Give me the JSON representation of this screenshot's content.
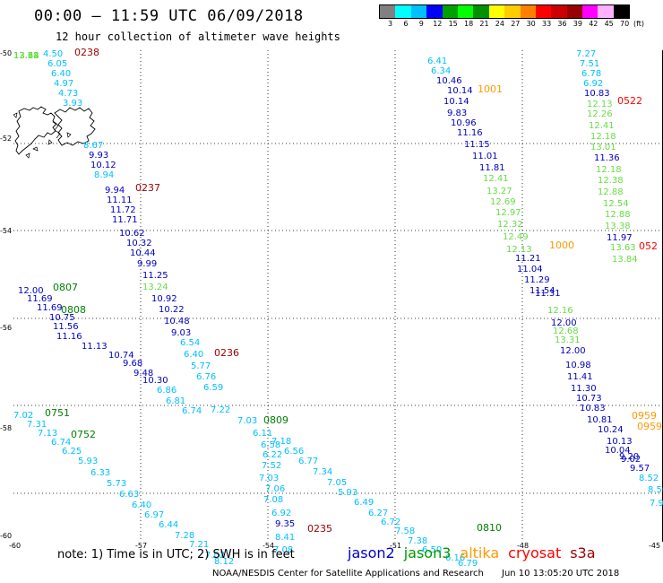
{
  "title": "00:00 – 11:59 UTC 06/09/2018",
  "subtitle": "12 hour collection of altimeter wave heights",
  "legend": {
    "unit": "(ft)",
    "colors": [
      "#808080",
      "#00ffff",
      "#00c0ff",
      "#0000ff",
      "#00a000",
      "#00ff00",
      "#009000",
      "#ffff00",
      "#ffcc00",
      "#ff8000",
      "#ff0000",
      "#cc0000",
      "#990000",
      "#ff00ff",
      "#ffb0ff",
      "#000000"
    ],
    "labels": [
      "3",
      "6",
      "9",
      "12",
      "15",
      "18",
      "21",
      "24",
      "27",
      "30",
      "33",
      "36",
      "39",
      "42",
      "45",
      "70"
    ]
  },
  "axes": {
    "lat_labels": [
      "-50",
      "-52",
      "-54",
      "-56",
      "-58",
      "-60"
    ],
    "lon_labels": [
      "-60",
      "-57",
      "-54",
      "-51",
      "-48",
      "-45"
    ]
  },
  "time_labels": [
    {
      "text": "0238",
      "color": "#990000"
    },
    {
      "text": "0237",
      "color": "#990000"
    },
    {
      "text": "0236",
      "color": "#990000"
    },
    {
      "text": "0235",
      "color": "#990000"
    },
    {
      "text": "1001",
      "color": "#ff9900"
    },
    {
      "text": "1000",
      "color": "#ff9900"
    },
    {
      "text": "0959",
      "color": "#ff9900"
    },
    {
      "text": "0959",
      "color": "#ff9900"
    },
    {
      "text": "0522",
      "color": "#ff0000"
    },
    {
      "text": "052",
      "color": "#ff0000"
    },
    {
      "text": "0807",
      "color": "#008000"
    },
    {
      "text": "0808",
      "color": "#008000"
    },
    {
      "text": "0809",
      "color": "#008000"
    },
    {
      "text": "0810",
      "color": "#008000"
    },
    {
      "text": "0751",
      "color": "#008000"
    },
    {
      "text": "0752",
      "color": "#008000"
    }
  ],
  "observations": [
    {
      "v": "4.50",
      "c": "#00c0ff"
    },
    {
      "v": "6.05",
      "c": "#00c0ff"
    },
    {
      "v": "6.40",
      "c": "#00c0ff"
    },
    {
      "v": "4.97",
      "c": "#00c0ff"
    },
    {
      "v": "4.73",
      "c": "#00c0ff"
    },
    {
      "v": "3.93",
      "c": "#00c0ff"
    },
    {
      "v": "8.67",
      "c": "#00c0ff"
    },
    {
      "v": "9.93",
      "c": "#0000c0"
    },
    {
      "v": "10.12",
      "c": "#0000c0"
    },
    {
      "v": "8.94",
      "c": "#00c0ff"
    },
    {
      "v": "9.94",
      "c": "#0000c0"
    },
    {
      "v": "11.11",
      "c": "#0000c0"
    },
    {
      "v": "11.72",
      "c": "#0000c0"
    },
    {
      "v": "11.71",
      "c": "#0000c0"
    },
    {
      "v": "10.62",
      "c": "#0000c0"
    },
    {
      "v": "10.32",
      "c": "#0000c0"
    },
    {
      "v": "10.44",
      "c": "#0000c0"
    },
    {
      "v": "9.99",
      "c": "#0000c0"
    },
    {
      "v": "11.25",
      "c": "#0000c0"
    },
    {
      "v": "13.24",
      "c": "#66dd44"
    },
    {
      "v": "10.92",
      "c": "#0000c0"
    },
    {
      "v": "10.22",
      "c": "#0000c0"
    },
    {
      "v": "10.48",
      "c": "#0000c0"
    },
    {
      "v": "9.03",
      "c": "#0000c0"
    },
    {
      "v": "6.54",
      "c": "#00c0ff"
    },
    {
      "v": "6.40",
      "c": "#00c0ff"
    },
    {
      "v": "5.77",
      "c": "#00c0ff"
    },
    {
      "v": "6.76",
      "c": "#00c0ff"
    },
    {
      "v": "6.59",
      "c": "#00c0ff"
    },
    {
      "v": "7.22",
      "c": "#00c0ff"
    },
    {
      "v": "7.03",
      "c": "#00c0ff"
    },
    {
      "v": "7.18",
      "c": "#00c0ff"
    },
    {
      "v": "6.56",
      "c": "#00c0ff"
    },
    {
      "v": "6.77",
      "c": "#00c0ff"
    },
    {
      "v": "7.34",
      "c": "#00c0ff"
    },
    {
      "v": "7.05",
      "c": "#00c0ff"
    },
    {
      "v": "5.93",
      "c": "#00c0ff"
    },
    {
      "v": "6.49",
      "c": "#00c0ff"
    },
    {
      "v": "6.27",
      "c": "#00c0ff"
    },
    {
      "v": "6.72",
      "c": "#00c0ff"
    },
    {
      "v": "7.58",
      "c": "#00c0ff"
    },
    {
      "v": "7.38",
      "c": "#00c0ff"
    },
    {
      "v": "6.50",
      "c": "#00c0ff"
    },
    {
      "v": "6.16",
      "c": "#00c0ff"
    },
    {
      "v": "6.79",
      "c": "#00c0ff"
    },
    {
      "v": "12.00",
      "c": "#0000c0"
    },
    {
      "v": "11.69",
      "c": "#0000c0"
    },
    {
      "v": "11.69",
      "c": "#0000c0"
    },
    {
      "v": "10.75",
      "c": "#0000c0"
    },
    {
      "v": "11.56",
      "c": "#0000c0"
    },
    {
      "v": "11.16",
      "c": "#0000c0"
    },
    {
      "v": "11.13",
      "c": "#0000c0"
    },
    {
      "v": "10.74",
      "c": "#0000c0"
    },
    {
      "v": "9.68",
      "c": "#0000c0"
    },
    {
      "v": "9.48",
      "c": "#0000c0"
    },
    {
      "v": "10.30",
      "c": "#0000c0"
    },
    {
      "v": "6.86",
      "c": "#00c0ff"
    },
    {
      "v": "6.81",
      "c": "#00c0ff"
    },
    {
      "v": "6.74",
      "c": "#00c0ff"
    },
    {
      "v": "7.02",
      "c": "#00c0ff"
    },
    {
      "v": "7.31",
      "c": "#00c0ff"
    },
    {
      "v": "7.13",
      "c": "#00c0ff"
    },
    {
      "v": "6.74",
      "c": "#00c0ff"
    },
    {
      "v": "6.25",
      "c": "#00c0ff"
    },
    {
      "v": "5.93",
      "c": "#00c0ff"
    },
    {
      "v": "6.33",
      "c": "#00c0ff"
    },
    {
      "v": "5.73",
      "c": "#00c0ff"
    },
    {
      "v": "6.63",
      "c": "#00c0ff"
    },
    {
      "v": "6.40",
      "c": "#00c0ff"
    },
    {
      "v": "6.97",
      "c": "#00c0ff"
    },
    {
      "v": "6.44",
      "c": "#00c0ff"
    },
    {
      "v": "7.28",
      "c": "#00c0ff"
    },
    {
      "v": "7.21",
      "c": "#00c0ff"
    },
    {
      "v": "7.02",
      "c": "#00c0ff"
    },
    {
      "v": "8.12",
      "c": "#00c0ff"
    },
    {
      "v": "9.35",
      "c": "#0000c0"
    },
    {
      "v": "8.41",
      "c": "#00c0ff"
    },
    {
      "v": "7.08",
      "c": "#00c0ff"
    },
    {
      "v": "6.92",
      "c": "#00c0ff"
    },
    {
      "v": "7.08",
      "c": "#00c0ff"
    },
    {
      "v": "7.06",
      "c": "#00c0ff"
    },
    {
      "v": "7.03",
      "c": "#00c0ff"
    },
    {
      "v": "7.52",
      "c": "#00c0ff"
    },
    {
      "v": "6.22",
      "c": "#00c0ff"
    },
    {
      "v": "6.58",
      "c": "#00c0ff"
    },
    {
      "v": "6.11",
      "c": "#00c0ff"
    },
    {
      "v": "6.41",
      "c": "#00c0ff"
    },
    {
      "v": "6.34",
      "c": "#00c0ff"
    },
    {
      "v": "10.46",
      "c": "#0000c0"
    },
    {
      "v": "10.14",
      "c": "#0000c0"
    },
    {
      "v": "10.14",
      "c": "#0000c0"
    },
    {
      "v": "9.83",
      "c": "#0000c0"
    },
    {
      "v": "10.96",
      "c": "#0000c0"
    },
    {
      "v": "11.16",
      "c": "#0000c0"
    },
    {
      "v": "11.15",
      "c": "#0000c0"
    },
    {
      "v": "11.01",
      "c": "#0000c0"
    },
    {
      "v": "11.81",
      "c": "#0000c0"
    },
    {
      "v": "12.41",
      "c": "#66dd44"
    },
    {
      "v": "13.27",
      "c": "#66dd44"
    },
    {
      "v": "12.69",
      "c": "#66dd44"
    },
    {
      "v": "12.97",
      "c": "#66dd44"
    },
    {
      "v": "12.32",
      "c": "#66dd44"
    },
    {
      "v": "12.49",
      "c": "#66dd44"
    },
    {
      "v": "12.13",
      "c": "#66dd44"
    },
    {
      "v": "11.21",
      "c": "#0000c0"
    },
    {
      "v": "11.04",
      "c": "#0000c0"
    },
    {
      "v": "11.29",
      "c": "#0000c0"
    },
    {
      "v": "11.54",
      "c": "#0000c0"
    },
    {
      "v": "11.31",
      "c": "#0000c0"
    },
    {
      "v": "12.16",
      "c": "#66dd44"
    },
    {
      "v": "12.00",
      "c": "#0000c0"
    },
    {
      "v": "12.68",
      "c": "#66dd44"
    },
    {
      "v": "13.31",
      "c": "#66dd44"
    },
    {
      "v": "12.00",
      "c": "#0000c0"
    },
    {
      "v": "10.98",
      "c": "#0000c0"
    },
    {
      "v": "11.41",
      "c": "#0000c0"
    },
    {
      "v": "11.30",
      "c": "#0000c0"
    },
    {
      "v": "10.73",
      "c": "#0000c0"
    },
    {
      "v": "10.83",
      "c": "#0000c0"
    },
    {
      "v": "10.81",
      "c": "#0000c0"
    },
    {
      "v": "10.24",
      "c": "#0000c0"
    },
    {
      "v": "10.13",
      "c": "#0000c0"
    },
    {
      "v": "10.04",
      "c": "#0000c0"
    },
    {
      "v": "9.20",
      "c": "#0000c0"
    },
    {
      "v": "9.02",
      "c": "#0000c0"
    },
    {
      "v": "9.57",
      "c": "#0000c0"
    },
    {
      "v": "8.52",
      "c": "#00c0ff"
    },
    {
      "v": "8.50",
      "c": "#00c0ff"
    },
    {
      "v": "7.97",
      "c": "#00c0ff"
    },
    {
      "v": "7.27",
      "c": "#00c0ff"
    },
    {
      "v": "7.51",
      "c": "#00c0ff"
    },
    {
      "v": "6.78",
      "c": "#00c0ff"
    },
    {
      "v": "6.92",
      "c": "#00c0ff"
    },
    {
      "v": "10.83",
      "c": "#0000c0"
    },
    {
      "v": "12.13",
      "c": "#66dd44"
    },
    {
      "v": "12.26",
      "c": "#66dd44"
    },
    {
      "v": "12.41",
      "c": "#66dd44"
    },
    {
      "v": "12.18",
      "c": "#66dd44"
    },
    {
      "v": "13.01",
      "c": "#66dd44"
    },
    {
      "v": "11.36",
      "c": "#0000c0"
    },
    {
      "v": "12.18",
      "c": "#66dd44"
    },
    {
      "v": "12.38",
      "c": "#66dd44"
    },
    {
      "v": "12.88",
      "c": "#66dd44"
    },
    {
      "v": "12.54",
      "c": "#66dd44"
    },
    {
      "v": "12.88",
      "c": "#66dd44"
    },
    {
      "v": "13.38",
      "c": "#66dd44"
    },
    {
      "v": "11.97",
      "c": "#0000c0"
    },
    {
      "v": "13.63",
      "c": "#66dd44"
    },
    {
      "v": "13.84",
      "c": "#66dd44"
    },
    {
      "v": "13.24",
      "c": "#66dd44"
    },
    {
      "v": "13.14",
      "c": "#66dd44"
    },
    {
      "v": "13.68",
      "c": "#66dd44"
    },
    {
      "v": "12.52",
      "c": "#66dd44"
    }
  ],
  "note": "note: 1) Time is in UTC; 2) SWH is in feet",
  "satellites": [
    {
      "name": "jason2",
      "color": "#0000cc"
    },
    {
      "name": "jason3",
      "color": "#009900"
    },
    {
      "name": "altika",
      "color": "#ff9900"
    },
    {
      "name": "cryosat",
      "color": "#ff0000"
    },
    {
      "name": "s3a",
      "color": "#990000"
    }
  ],
  "footer_center": "NOAA/NESDIS Center for Satellite Applications and Research",
  "footer_right": "Jun 10 13:05:20 UTC 2018"
}
